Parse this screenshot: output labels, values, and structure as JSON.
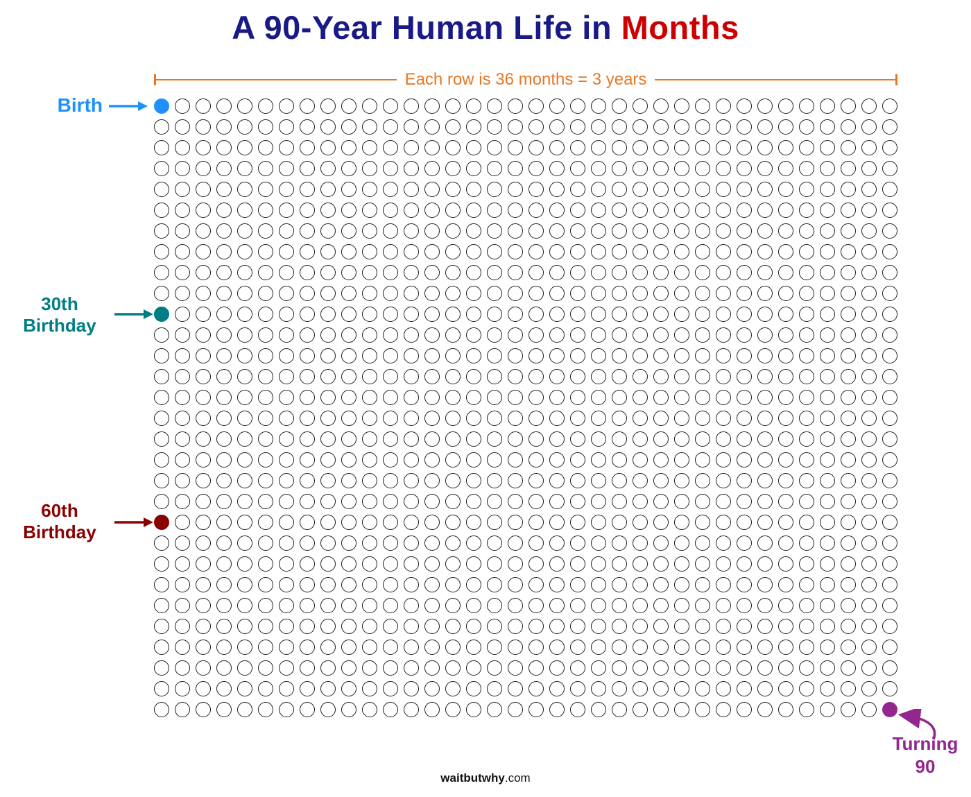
{
  "title": {
    "main": "A 90-Year Human Life in",
    "highlight": "Months",
    "main_color": "#1a1a86",
    "highlight_color": "#cc0000"
  },
  "bracket": {
    "label": "Each row is 36 months = 3 years",
    "color": "#e87722"
  },
  "grid": {
    "rows": 30,
    "cols": 36,
    "months_per_row": 36,
    "years_per_row": 3,
    "total_months": 1080,
    "circle_border_color": "#1f1f1f"
  },
  "milestones": [
    {
      "id": "birth",
      "lines": [
        "Birth"
      ],
      "row": 0,
      "col": 0,
      "color": "#1e90ff"
    },
    {
      "id": "30th-birthday",
      "lines": [
        "30th",
        "Birthday"
      ],
      "row": 10,
      "col": 0,
      "color": "#007d85"
    },
    {
      "id": "60th-birthday",
      "lines": [
        "60th",
        "Birthday"
      ],
      "row": 20,
      "col": 0,
      "color": "#8b0000"
    },
    {
      "id": "turning-90",
      "lines": [
        "Turning",
        "90"
      ],
      "row": 29,
      "col": 35,
      "color": "#93278f"
    }
  ],
  "footer": {
    "brand": "waitbutwhy",
    "suffix": ".com"
  }
}
